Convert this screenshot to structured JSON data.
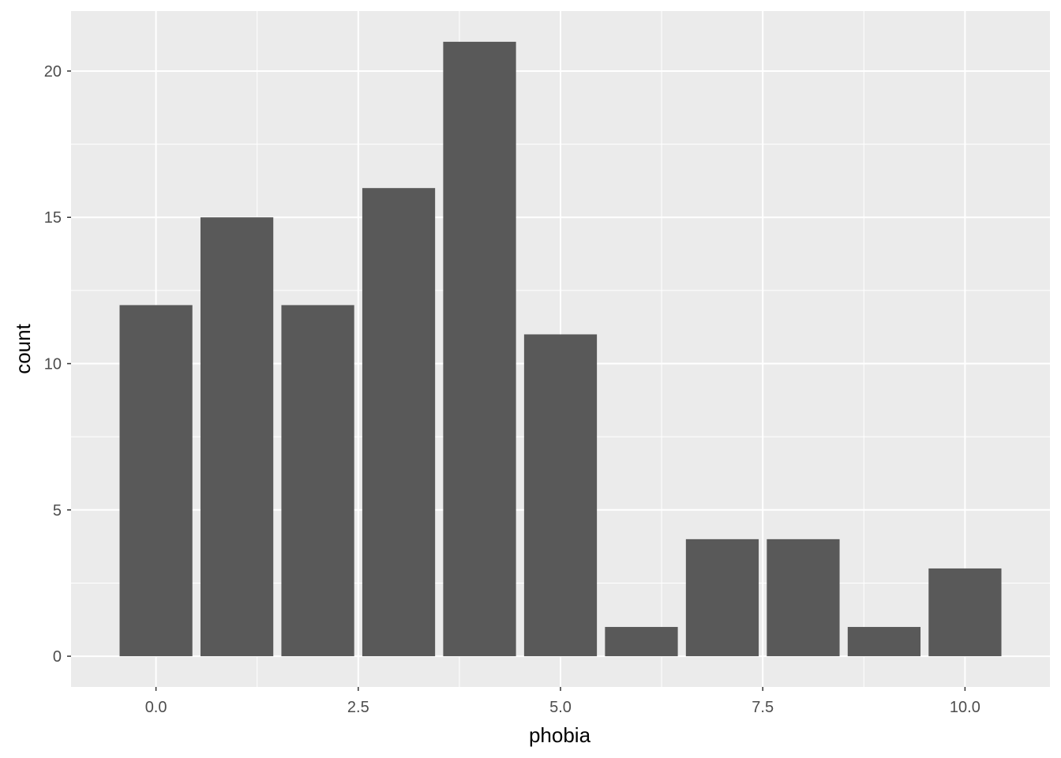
{
  "chart_data": {
    "type": "bar",
    "x": [
      0,
      1,
      2,
      3,
      4,
      5,
      6,
      7,
      8,
      9,
      10
    ],
    "values": [
      12,
      15,
      12,
      16,
      21,
      11,
      1,
      4,
      4,
      1,
      3
    ],
    "xlabel": "phobia",
    "ylabel": "count",
    "xlim": [
      -1.05,
      11.05
    ],
    "ylim": [
      -1.05,
      22.05
    ],
    "x_ticks": [
      0,
      2.5,
      5,
      7.5,
      10
    ],
    "x_tick_labels": [
      "0.0",
      "2.5",
      "5.0",
      "7.5",
      "10.0"
    ],
    "y_ticks": [
      0,
      5,
      10,
      15,
      20
    ],
    "y_tick_labels": [
      "0",
      "5",
      "10",
      "15",
      "20"
    ],
    "x_minor_ticks": [
      1.25,
      3.75,
      6.25,
      8.75
    ],
    "y_minor_ticks": [
      2.5,
      7.5,
      12.5,
      17.5
    ],
    "bar_width": 0.9,
    "grid": true,
    "colors": {
      "panel_background": "#ebebeb",
      "grid_line": "#ffffff",
      "bar_fill": "#595959",
      "tick_label": "#4d4d4d",
      "axis_title": "#000000"
    }
  }
}
